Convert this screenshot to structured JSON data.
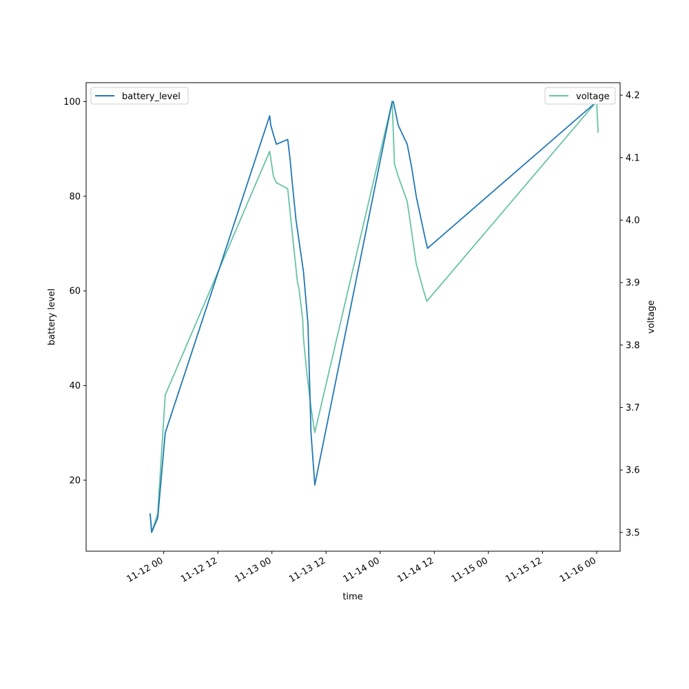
{
  "chart_data": {
    "type": "line",
    "xlabel": "time",
    "ylabel_left": "battery level",
    "ylabel_right": "voltage",
    "x_tick_labels": [
      "11-12 00",
      "11-12 12",
      "11-13 00",
      "11-13 12",
      "11-14 00",
      "11-14 12",
      "11-15 00",
      "11-15 12",
      "11-16 00"
    ],
    "y_left_ticks": [
      20,
      40,
      60,
      80,
      100
    ],
    "y_right_ticks": [
      3.5,
      3.6,
      3.7,
      3.8,
      3.9,
      4.0,
      4.1,
      4.2
    ],
    "xlim": [
      "2023-11-11 06:48",
      "2023-11-16 05:12"
    ],
    "ylim_left": [
      5,
      104
    ],
    "ylim_right": [
      3.47,
      4.22
    ],
    "legend_left": "top-left",
    "legend_right": "top-right",
    "colors": {
      "battery_level": "#1f77b4",
      "voltage": "#66c2a5"
    },
    "series": [
      {
        "name": "battery_level",
        "axis": "left",
        "points": [
          [
            "2023-11-11 21:00",
            13
          ],
          [
            "2023-11-11 21:10",
            11
          ],
          [
            "2023-11-11 21:20",
            9
          ],
          [
            "2023-11-11 22:40",
            12
          ],
          [
            "2023-11-12 00:20",
            30
          ],
          [
            "2023-11-12 23:30",
            97
          ],
          [
            "2023-11-12 23:45",
            95
          ],
          [
            "2023-11-13 00:20",
            93
          ],
          [
            "2023-11-13 00:40",
            92
          ],
          [
            "2023-11-13 01:00",
            91
          ],
          [
            "2023-11-13 03:30",
            92
          ],
          [
            "2023-11-13 04:00",
            88
          ],
          [
            "2023-11-13 04:30",
            83
          ],
          [
            "2023-11-13 05:20",
            75
          ],
          [
            "2023-11-13 07:00",
            64
          ],
          [
            "2023-11-13 08:00",
            53
          ],
          [
            "2023-11-13 08:40",
            30
          ],
          [
            "2023-11-13 09:30",
            19
          ],
          [
            "2023-11-14 02:40",
            100
          ],
          [
            "2023-11-14 02:55",
            100
          ],
          [
            "2023-11-14 04:00",
            95
          ],
          [
            "2023-11-14 05:00",
            93
          ],
          [
            "2023-11-14 06:00",
            91
          ],
          [
            "2023-11-14 07:00",
            86
          ],
          [
            "2023-11-14 08:00",
            80
          ],
          [
            "2023-11-14 10:00",
            71
          ],
          [
            "2023-11-14 10:30",
            69
          ],
          [
            "2023-11-16 00:00",
            100
          ]
        ]
      },
      {
        "name": "voltage",
        "axis": "right",
        "points": [
          [
            "2023-11-11 21:00",
            3.53
          ],
          [
            "2023-11-11 21:20",
            3.5
          ],
          [
            "2023-11-11 22:40",
            3.53
          ],
          [
            "2023-11-12 00:20",
            3.72
          ],
          [
            "2023-11-12 23:30",
            4.11
          ],
          [
            "2023-11-13 00:20",
            4.07
          ],
          [
            "2023-11-13 01:00",
            4.06
          ],
          [
            "2023-11-13 03:30",
            4.05
          ],
          [
            "2023-11-13 04:30",
            3.98
          ],
          [
            "2023-11-13 05:40",
            3.9
          ],
          [
            "2023-11-13 06:00",
            3.89
          ],
          [
            "2023-11-13 06:50",
            3.84
          ],
          [
            "2023-11-13 07:00",
            3.81
          ],
          [
            "2023-11-13 07:40",
            3.76
          ],
          [
            "2023-11-13 08:40",
            3.7
          ],
          [
            "2023-11-13 09:30",
            3.66
          ],
          [
            "2023-11-14 02:40",
            4.19
          ],
          [
            "2023-11-14 03:10",
            4.09
          ],
          [
            "2023-11-14 04:00",
            4.07
          ],
          [
            "2023-11-14 06:00",
            4.03
          ],
          [
            "2023-11-14 07:00",
            3.98
          ],
          [
            "2023-11-14 08:00",
            3.93
          ],
          [
            "2023-11-14 09:30",
            3.89
          ],
          [
            "2023-11-14 10:20",
            3.87
          ],
          [
            "2023-11-16 00:00",
            4.19
          ],
          [
            "2023-11-16 00:20",
            4.14
          ]
        ]
      }
    ]
  }
}
